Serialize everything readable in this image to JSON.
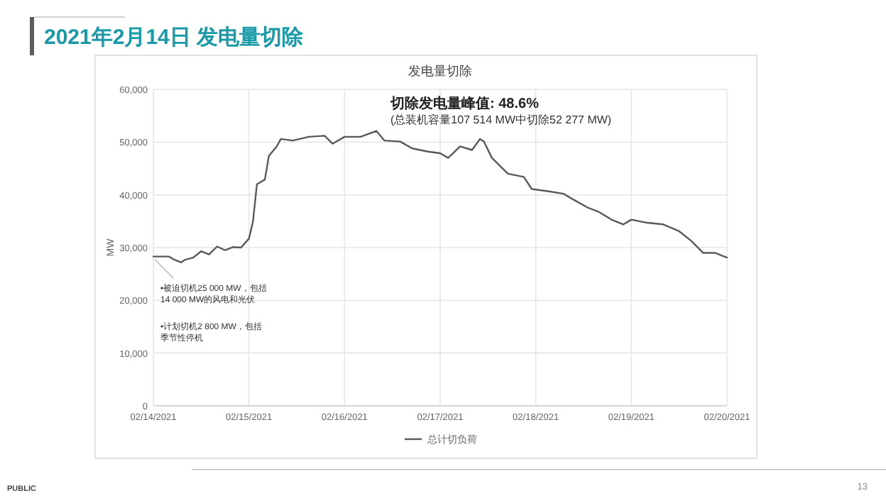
{
  "chart_data": {
    "type": "line",
    "title": "2021年2月14日 发电量切除",
    "subtitle": "发电量切除",
    "ylabel": "MW",
    "x": [
      "2021-02-14T00:00",
      "2021-02-14T04:00",
      "2021-02-14T05:00",
      "2021-02-14T07:00",
      "2021-02-14T08:00",
      "2021-02-14T10:00",
      "2021-02-14T12:00",
      "2021-02-14T14:00",
      "2021-02-14T16:00",
      "2021-02-14T18:00",
      "2021-02-14T20:00",
      "2021-02-14T22:00",
      "2021-02-15T00:00",
      "2021-02-15T01:00",
      "2021-02-15T02:00",
      "2021-02-15T04:00",
      "2021-02-15T05:00",
      "2021-02-15T07:00",
      "2021-02-15T08:00",
      "2021-02-15T11:00",
      "2021-02-15T15:00",
      "2021-02-15T19:00",
      "2021-02-15T21:00",
      "2021-02-16T00:00",
      "2021-02-16T04:00",
      "2021-02-16T08:00",
      "2021-02-16T10:00",
      "2021-02-16T14:00",
      "2021-02-16T17:00",
      "2021-02-16T21:00",
      "2021-02-17T00:00",
      "2021-02-17T02:00",
      "2021-02-17T05:00",
      "2021-02-17T08:00",
      "2021-02-17T10:00",
      "2021-02-17T11:00",
      "2021-02-17T13:00",
      "2021-02-17T17:00",
      "2021-02-17T21:00",
      "2021-02-17T23:00",
      "2021-02-18T03:00",
      "2021-02-18T07:00",
      "2021-02-18T09:00",
      "2021-02-18T13:00",
      "2021-02-18T16:00",
      "2021-02-18T19:00",
      "2021-02-18T22:00",
      "2021-02-19T00:00",
      "2021-02-19T04:00",
      "2021-02-19T08:00",
      "2021-02-19T12:00",
      "2021-02-19T15:00",
      "2021-02-19T18:00",
      "2021-02-19T21:00",
      "2021-02-20T00:00"
    ],
    "series": [
      {
        "name": "总计切负荷",
        "color": "#595959",
        "values": [
          28300,
          28300,
          27800,
          27200,
          27700,
          28100,
          29300,
          28700,
          30200,
          29500,
          30100,
          30000,
          31700,
          34900,
          42000,
          42900,
          47400,
          49200,
          50600,
          50300,
          51000,
          51200,
          49700,
          51000,
          51000,
          52100,
          50300,
          50100,
          48800,
          48200,
          47900,
          47000,
          49200,
          48500,
          50600,
          50100,
          47000,
          44000,
          43400,
          41100,
          40700,
          40200,
          39300,
          37600,
          36700,
          35300,
          34400,
          35300,
          34700,
          34400,
          33100,
          31300,
          29000,
          29000,
          28100
        ]
      }
    ],
    "xlim": [
      "2021-02-14",
      "2021-02-20"
    ],
    "xticks": [
      {
        "value": "2021-02-14",
        "label": "02/14/2021"
      },
      {
        "value": "2021-02-15",
        "label": "02/15/2021"
      },
      {
        "value": "2021-02-16",
        "label": "02/16/2021"
      },
      {
        "value": "2021-02-17",
        "label": "02/17/2021"
      },
      {
        "value": "2021-02-18",
        "label": "02/18/2021"
      },
      {
        "value": "2021-02-19",
        "label": "02/19/2021"
      },
      {
        "value": "2021-02-20",
        "label": "02/20/2021"
      }
    ],
    "ylim": [
      0,
      60000
    ],
    "yticks": [
      {
        "value": 0,
        "label": "0"
      },
      {
        "value": 10000,
        "label": "10,000"
      },
      {
        "value": 20000,
        "label": "20,000"
      },
      {
        "value": 30000,
        "label": "30,000"
      },
      {
        "value": 40000,
        "label": "40,000"
      },
      {
        "value": 50000,
        "label": "50,000"
      },
      {
        "value": 60000,
        "label": "60,000"
      }
    ],
    "grid": true,
    "legend": "bottom",
    "marker": "none",
    "line_style": "solid",
    "annotations": [
      "切除发电量峰值: 48.6%",
      "(总装机容量107 514 MW中切除52 277 MW)",
      "•被迫切机25 000 MW，包括14 000 MW的风电和光伏",
      "•计划切机2 800 MW，包括季节性停机",
      "PUBLIC",
      "13"
    ]
  }
}
